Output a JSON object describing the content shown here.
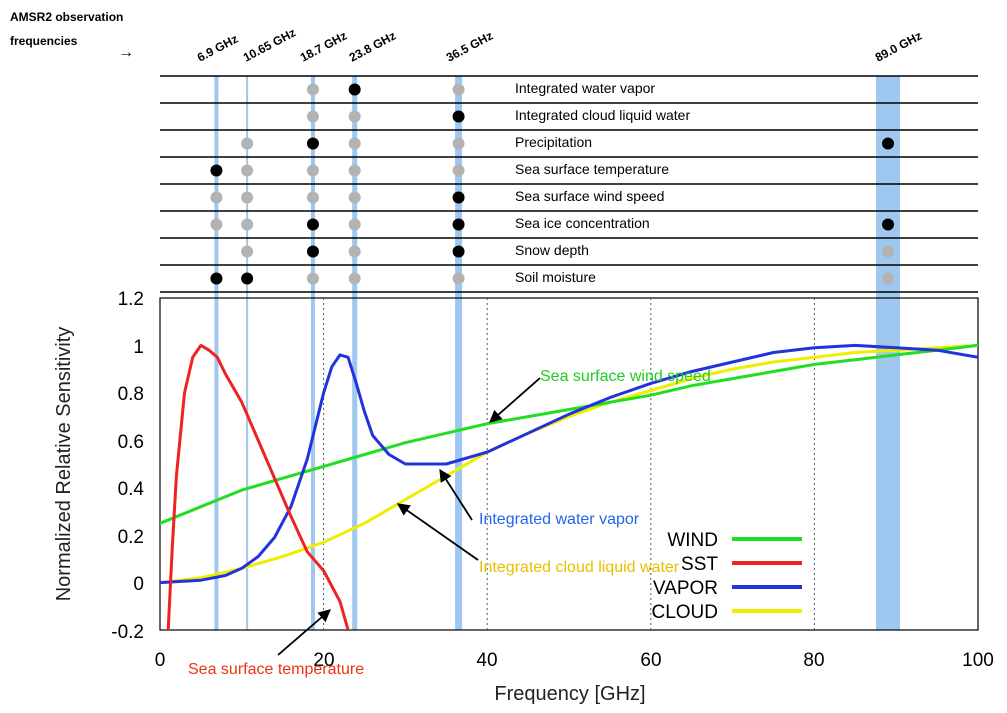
{
  "header": {
    "title_line1": "AMSR2 observation",
    "title_line2": "frequencies",
    "arrow": "→"
  },
  "channels": [
    "6.9 GHz",
    "10.65 GHz",
    "18.7 GHz",
    "23.8 GHz",
    "36.5 GHz",
    "89.0 GHz"
  ],
  "products": [
    {
      "name": "Integrated water vapor",
      "marks": [
        "",
        "",
        "gray",
        "black",
        "gray",
        ""
      ]
    },
    {
      "name": "Integrated cloud liquid water",
      "marks": [
        "",
        "",
        "gray",
        "gray",
        "black",
        ""
      ]
    },
    {
      "name": "Precipitation",
      "marks": [
        "",
        "gray",
        "black",
        "gray",
        "gray",
        "black"
      ]
    },
    {
      "name": "Sea surface temperature",
      "marks": [
        "black",
        "gray",
        "gray",
        "gray",
        "gray",
        ""
      ]
    },
    {
      "name": "Sea surface wind speed",
      "marks": [
        "gray",
        "gray",
        "gray",
        "gray",
        "black",
        ""
      ]
    },
    {
      "name": "Sea ice concentration",
      "marks": [
        "gray",
        "gray",
        "black",
        "gray",
        "black",
        "black"
      ]
    },
    {
      "name": "Snow depth",
      "marks": [
        "",
        "gray",
        "black",
        "gray",
        "black",
        "gray"
      ]
    },
    {
      "name": "Soil moisture",
      "marks": [
        "black",
        "black",
        "gray",
        "gray",
        "gray",
        "gray"
      ]
    }
  ],
  "colors": {
    "band": "#9ec8ef",
    "wind": "#22dd22",
    "sst": "#ee2222",
    "vapor": "#2233dd",
    "cloud": "#eeee00",
    "annotation_wind": "#22cc22",
    "annotation_sst": "#ee3311",
    "annotation_vapor": "#2266ee",
    "annotation_cloud": "#e8c000"
  },
  "annotations": {
    "wind": "Sea surface wind speed",
    "vapor": "Integrated water vapor",
    "cloud": "Integrated cloud liquid water",
    "sst": "Sea surface temperature"
  },
  "chart_data": {
    "type": "line",
    "xlabel": "Frequency [GHz]",
    "ylabel": "Normalized Relative Sensitivity",
    "xlim": [
      0,
      100
    ],
    "ylim": [
      -0.2,
      1.2
    ],
    "x_ticks": [
      "0",
      "20",
      "40",
      "60",
      "80",
      "100"
    ],
    "y_ticks": [
      "-0.2",
      "0",
      "0.2",
      "0.4",
      "0.6",
      "0.8",
      "1",
      "1.2"
    ],
    "grid": "vertical dotted lines at 20, 40, 60, 80",
    "legend_placement": "bottom-right",
    "channel_frequencies": [
      6.9,
      10.65,
      18.7,
      23.8,
      36.5,
      89.0
    ],
    "series": [
      {
        "name": "WIND",
        "color": "#22dd22",
        "x": [
          0,
          5,
          10,
          15,
          20,
          25,
          30,
          35,
          40,
          45,
          50,
          55,
          60,
          65,
          70,
          75,
          80,
          85,
          90,
          95,
          100
        ],
        "y": [
          0.25,
          0.32,
          0.39,
          0.44,
          0.49,
          0.54,
          0.59,
          0.63,
          0.67,
          0.7,
          0.73,
          0.76,
          0.79,
          0.83,
          0.86,
          0.89,
          0.92,
          0.94,
          0.96,
          0.98,
          1.0
        ]
      },
      {
        "name": "SST",
        "color": "#ee2222",
        "x": [
          1,
          1.5,
          2,
          3,
          4,
          5,
          6,
          7,
          8,
          10,
          12,
          14,
          16,
          18,
          20,
          22,
          23
        ],
        "y": [
          -0.2,
          0.15,
          0.45,
          0.8,
          0.95,
          1.0,
          0.98,
          0.95,
          0.88,
          0.76,
          0.6,
          0.44,
          0.28,
          0.13,
          0.05,
          -0.08,
          -0.2
        ]
      },
      {
        "name": "VAPOR",
        "color": "#2233dd",
        "x": [
          0,
          5,
          8,
          10,
          12,
          14,
          16,
          18,
          19,
          20,
          21,
          22,
          23,
          24,
          25,
          26,
          28,
          30,
          35,
          40,
          45,
          50,
          55,
          60,
          65,
          70,
          75,
          80,
          85,
          90,
          95,
          100
        ],
        "y": [
          0.0,
          0.01,
          0.03,
          0.06,
          0.11,
          0.19,
          0.32,
          0.52,
          0.66,
          0.8,
          0.91,
          0.96,
          0.95,
          0.84,
          0.72,
          0.62,
          0.54,
          0.5,
          0.5,
          0.55,
          0.63,
          0.71,
          0.78,
          0.84,
          0.89,
          0.93,
          0.97,
          0.99,
          1.0,
          0.99,
          0.98,
          0.95
        ]
      },
      {
        "name": "CLOUD",
        "color": "#eeee00",
        "x": [
          0,
          5,
          10,
          15,
          20,
          25,
          30,
          35,
          40,
          45,
          50,
          55,
          60,
          65,
          70,
          75,
          80,
          85,
          90,
          95,
          100
        ],
        "y": [
          0.0,
          0.02,
          0.06,
          0.11,
          0.17,
          0.25,
          0.35,
          0.45,
          0.55,
          0.63,
          0.7,
          0.76,
          0.81,
          0.86,
          0.9,
          0.93,
          0.95,
          0.97,
          0.98,
          0.99,
          1.0
        ]
      }
    ]
  }
}
